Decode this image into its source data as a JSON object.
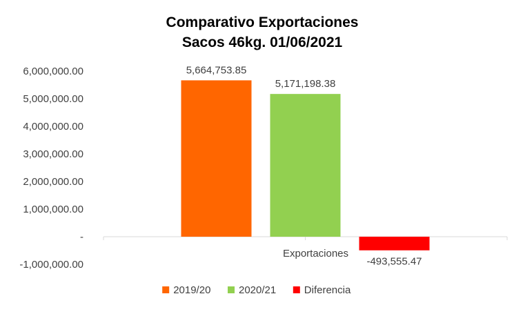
{
  "chart_data": {
    "type": "bar",
    "title_lines": [
      "Comparativo  Exportaciones",
      "Sacos 46kg. 01/06/2021"
    ],
    "categories": [
      "Exportaciones"
    ],
    "series": [
      {
        "name": "2019/20",
        "values": [
          5664753.85
        ],
        "color": "#FF6600",
        "label": "5,664,753.85"
      },
      {
        "name": "2020/21",
        "values": [
          5171198.38
        ],
        "color": "#92D050",
        "label": "5,171,198.38"
      },
      {
        "name": "Diferencia",
        "values": [
          -493555.47
        ],
        "color": "#FF0000",
        "label": "-493,555.47"
      }
    ],
    "ylim": [
      -1000000,
      6000000
    ],
    "yticks": [
      {
        "value": 6000000,
        "label": "6,000,000.00"
      },
      {
        "value": 5000000,
        "label": "5,000,000.00"
      },
      {
        "value": 4000000,
        "label": "4,000,000.00"
      },
      {
        "value": 3000000,
        "label": "3,000,000.00"
      },
      {
        "value": 2000000,
        "label": "2,000,000.00"
      },
      {
        "value": 1000000,
        "label": "1,000,000.00"
      },
      {
        "value": 0,
        "label": "-"
      },
      {
        "value": -1000000,
        "label": "-1,000,000.00"
      }
    ],
    "grid": false,
    "legend_position": "bottom"
  }
}
